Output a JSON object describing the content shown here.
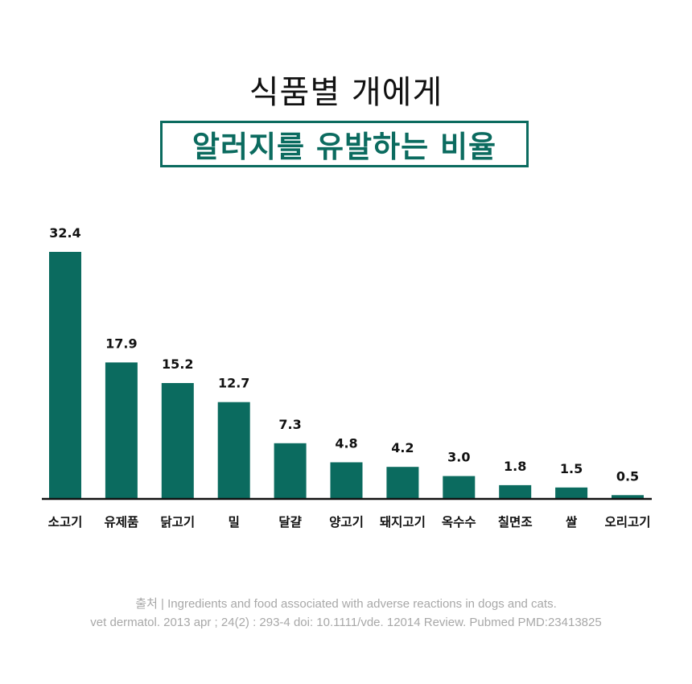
{
  "title": {
    "line1": "식품별 개에게",
    "line2": "알러지를 유발하는 비율"
  },
  "colors": {
    "accent": "#0b6b5f",
    "text": "#111111",
    "source": "#a8a8a8"
  },
  "chart_data": {
    "type": "bar",
    "title": "식품별 개에게 알러지를 유발하는 비율",
    "categories": [
      "소고기",
      "유제품",
      "닭고기",
      "밀",
      "달걀",
      "양고기",
      "돼지고기",
      "옥수수",
      "칠면조",
      "쌀",
      "오리고기"
    ],
    "values": [
      32.4,
      17.9,
      15.2,
      12.7,
      7.3,
      4.8,
      4.2,
      3.0,
      1.8,
      1.5,
      0.5
    ],
    "value_labels": [
      "32.4",
      "17.9",
      "15.2",
      "12.7",
      "7.3",
      "4.8",
      "4.2",
      "3.0",
      "1.8",
      "1.5",
      "0.5"
    ],
    "xlabel": "",
    "ylabel": "",
    "ylim": [
      0,
      32.4
    ],
    "grid": false,
    "legend": "none"
  },
  "source": {
    "line1": "출처  |  Ingredients and food associated with adverse reactions in dogs and cats.",
    "line2": "vet dermatol. 2013 apr ; 24(2) : 293-4 doi: 10.1111/vde. 12014 Review. Pubmed PMD:23413825"
  }
}
